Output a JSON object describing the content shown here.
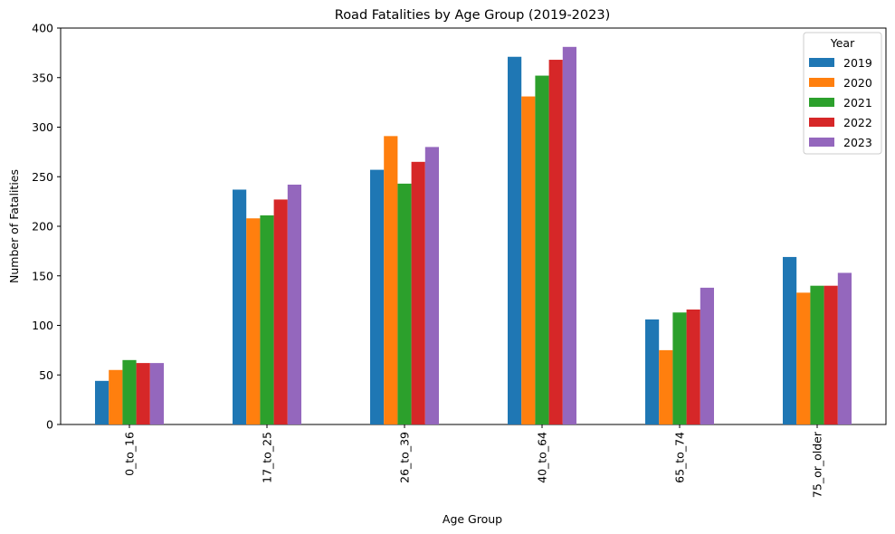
{
  "chart_data": {
    "type": "bar",
    "title": "Road Fatalities by Age Group (2019-2023)",
    "xlabel": "Age Group",
    "ylabel": "Number of Fatalities",
    "ylim": [
      0,
      400
    ],
    "yticks": [
      0,
      50,
      100,
      150,
      200,
      250,
      300,
      350,
      400
    ],
    "categories": [
      "0_to_16",
      "17_to_25",
      "26_to_39",
      "40_to_64",
      "65_to_74",
      "75_or_older"
    ],
    "legend_title": "Year",
    "legend_position": "top-right",
    "grid": false,
    "series": [
      {
        "name": "2019",
        "color": "#1f77b4",
        "values": [
          44,
          237,
          257,
          371,
          106,
          169
        ]
      },
      {
        "name": "2020",
        "color": "#ff7f0e",
        "values": [
          55,
          208,
          291,
          331,
          75,
          133
        ]
      },
      {
        "name": "2021",
        "color": "#2ca02c",
        "values": [
          65,
          211,
          243,
          352,
          113,
          140
        ]
      },
      {
        "name": "2022",
        "color": "#d62728",
        "values": [
          62,
          227,
          265,
          368,
          116,
          140
        ]
      },
      {
        "name": "2023",
        "color": "#9467bd",
        "values": [
          62,
          242,
          280,
          381,
          138,
          153
        ]
      }
    ]
  }
}
